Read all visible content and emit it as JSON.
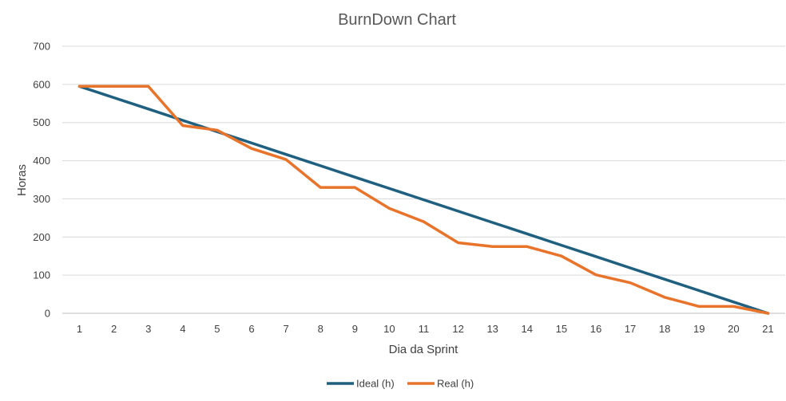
{
  "chart_data": {
    "type": "line",
    "title": "BurnDown Chart",
    "xlabel": "Dia da Sprint",
    "ylabel": "Horas",
    "x": [
      1,
      2,
      3,
      4,
      5,
      6,
      7,
      8,
      9,
      10,
      11,
      12,
      13,
      14,
      15,
      16,
      17,
      18,
      19,
      20,
      21
    ],
    "ylim": [
      0,
      700
    ],
    "yticks": [
      0,
      100,
      200,
      300,
      400,
      500,
      600,
      700
    ],
    "grid": true,
    "legend_position": "bottom",
    "series": [
      {
        "name": "Ideal (h)",
        "color": "#1f5f7f",
        "values": [
          595,
          565.25,
          535.5,
          505.75,
          476,
          446.25,
          416.5,
          386.75,
          357,
          327.25,
          297.5,
          267.75,
          238,
          208.25,
          178.5,
          148.75,
          119,
          89.25,
          59.5,
          29.75,
          0
        ]
      },
      {
        "name": "Real (h)",
        "color": "#e8742c",
        "values": [
          595,
          595,
          595,
          492,
          480,
          432,
          403,
          330,
          330,
          275,
          240,
          185,
          175,
          175,
          150,
          101,
          80,
          42,
          18,
          18,
          0
        ]
      }
    ]
  }
}
